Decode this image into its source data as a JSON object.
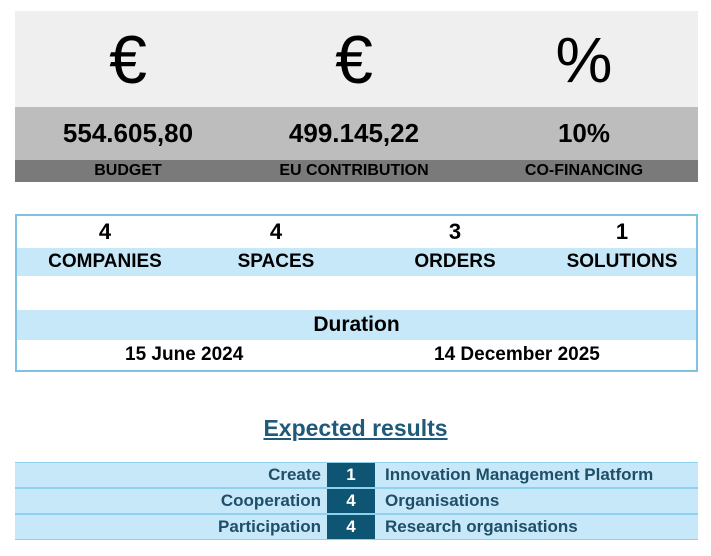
{
  "financials": [
    {
      "symbol": "€",
      "value": "554.605,80",
      "label": "BUDGET"
    },
    {
      "symbol": "€",
      "value": "499.145,22",
      "label": "EU CONTRIBUTION"
    },
    {
      "symbol": "%",
      "value": "10%",
      "label": "CO-FINANCING"
    }
  ],
  "counts": [
    {
      "value": "4",
      "label": "COMPANIES"
    },
    {
      "value": "4",
      "label": "SPACES"
    },
    {
      "value": "3",
      "label": "ORDERS"
    },
    {
      "value": "1",
      "label": "SOLUTIONS"
    }
  ],
  "duration": {
    "title": "Duration",
    "start": "15 June 2024",
    "end": "14 December 2025"
  },
  "expected_results": {
    "title": "Expected results",
    "rows": [
      {
        "verb": "Create",
        "count": "1",
        "object": "Innovation Management Platform"
      },
      {
        "verb": "Cooperation",
        "count": "4",
        "object": "Organisations"
      },
      {
        "verb": "Participation",
        "count": "4",
        "object": "Research organisations"
      }
    ]
  },
  "colors": {
    "light_blue": "#c6e8f8",
    "dark_teal": "#0e5473",
    "title_blue": "#1f5a7a",
    "grey_light": "#efefef",
    "grey_mid": "#bdbdbd",
    "grey_dark": "#7a7a7a"
  }
}
